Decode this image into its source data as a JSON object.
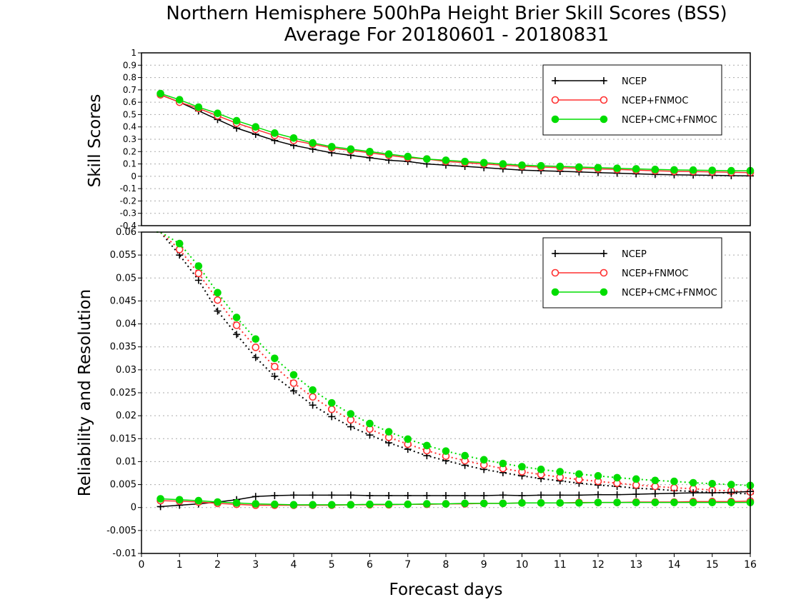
{
  "title": "Northern Hemisphere 500hPa Height Brier Skill Scores (BSS)",
  "subtitle": "Average For 20180601 - 20180831",
  "colors": {
    "NCEP": "#000000",
    "NCEP+FNMOC": "#ff3030",
    "NCEP+CMC+FNMOC": "#00dd00",
    "grid": "#aaaaaa",
    "frame": "#000000"
  },
  "chart_data": [
    {
      "type": "line",
      "ylabel": "Skill Scores",
      "xlabel": "",
      "xlim": [
        0,
        16
      ],
      "ylim": [
        -0.4,
        1
      ],
      "yticks": [
        "1",
        "0.9",
        "0.8",
        "0.7",
        "0.6",
        "0.5",
        "0.4",
        "0.3",
        "0.2",
        "0.1",
        "0",
        "-0.1",
        "-0.2",
        "-0.3",
        "-0.4"
      ],
      "grid": "horizontal dotted",
      "legend": {
        "position": "top-right",
        "entries": [
          "NCEP",
          "NCEP+FNMOC",
          "NCEP+CMC+FNMOC"
        ]
      },
      "x": [
        0.5,
        1,
        1.5,
        2,
        2.5,
        3,
        3.5,
        4,
        4.5,
        5,
        5.5,
        6,
        6.5,
        7,
        7.5,
        8,
        8.5,
        9,
        9.5,
        10,
        10.5,
        11,
        11.5,
        12,
        12.5,
        13,
        13.5,
        14,
        14.5,
        15,
        15.5,
        16
      ],
      "series": [
        {
          "name": "NCEP",
          "marker": "plus",
          "style": "solid",
          "values": [
            0.66,
            0.6,
            0.53,
            0.46,
            0.39,
            0.34,
            0.29,
            0.25,
            0.22,
            0.19,
            0.17,
            0.15,
            0.13,
            0.12,
            0.1,
            0.09,
            0.08,
            0.07,
            0.06,
            0.05,
            0.045,
            0.04,
            0.035,
            0.03,
            0.025,
            0.02,
            0.015,
            0.012,
            0.01,
            0.008,
            0.005,
            0.003
          ]
        },
        {
          "name": "NCEP+FNMOC",
          "marker": "open-circle",
          "style": "solid",
          "values": [
            0.66,
            0.6,
            0.55,
            0.49,
            0.43,
            0.38,
            0.33,
            0.29,
            0.26,
            0.23,
            0.21,
            0.19,
            0.17,
            0.15,
            0.14,
            0.12,
            0.11,
            0.1,
            0.09,
            0.08,
            0.075,
            0.07,
            0.065,
            0.06,
            0.055,
            0.05,
            0.045,
            0.04,
            0.038,
            0.035,
            0.032,
            0.03
          ]
        },
        {
          "name": "NCEP+CMC+FNMOC",
          "marker": "filled-circle",
          "style": "solid",
          "values": [
            0.67,
            0.62,
            0.56,
            0.51,
            0.45,
            0.4,
            0.35,
            0.31,
            0.27,
            0.24,
            0.22,
            0.2,
            0.18,
            0.16,
            0.14,
            0.13,
            0.12,
            0.11,
            0.1,
            0.09,
            0.085,
            0.08,
            0.075,
            0.07,
            0.065,
            0.06,
            0.055,
            0.052,
            0.05,
            0.048,
            0.045,
            0.045
          ]
        }
      ]
    },
    {
      "type": "line",
      "ylabel": "Reliability and Resolution",
      "xlabel": "Forecast days",
      "xlim": [
        0,
        16
      ],
      "ylim": [
        -0.01,
        0.06
      ],
      "xticks": [
        "0",
        "1",
        "2",
        "3",
        "4",
        "5",
        "6",
        "7",
        "8",
        "9",
        "10",
        "11",
        "12",
        "13",
        "14",
        "15",
        "16"
      ],
      "yticks": [
        "0.06",
        "0.055",
        "0.05",
        "0.045",
        "0.04",
        "0.035",
        "0.03",
        "0.025",
        "0.02",
        "0.015",
        "0.01",
        "0.005",
        "0",
        "-0.005",
        "-0.01"
      ],
      "grid": "horizontal dotted",
      "legend": {
        "position": "top-right",
        "entries": [
          "NCEP",
          "NCEP+FNMOC",
          "NCEP+CMC+FNMOC"
        ]
      },
      "x": [
        0.5,
        1,
        1.5,
        2,
        2.5,
        3,
        3.5,
        4,
        4.5,
        5,
        5.5,
        6,
        6.5,
        7,
        7.5,
        8,
        8.5,
        9,
        9.5,
        10,
        10.5,
        11,
        11.5,
        12,
        12.5,
        13,
        13.5,
        14,
        14.5,
        15,
        15.5,
        16
      ],
      "series": [
        {
          "name": "NCEP",
          "marker": "plus",
          "style": "dotted",
          "group": "resolution",
          "values": [
            0.06,
            0.055,
            0.0495,
            0.0428,
            0.0377,
            0.0327,
            0.0286,
            0.0254,
            0.0223,
            0.0198,
            0.0176,
            0.0158,
            0.0141,
            0.0127,
            0.0113,
            0.0102,
            0.0092,
            0.0083,
            0.0076,
            0.0069,
            0.0063,
            0.0058,
            0.0053,
            0.0049,
            0.0046,
            0.0042,
            0.004,
            0.0037,
            0.0035,
            0.0033,
            0.0031,
            0.003
          ]
        },
        {
          "name": "NCEP+FNMOC",
          "marker": "open-circle",
          "style": "dotted",
          "group": "resolution",
          "values": [
            0.06,
            0.0562,
            0.051,
            0.0452,
            0.0397,
            0.0349,
            0.0307,
            0.0271,
            0.0241,
            0.0214,
            0.0191,
            0.0171,
            0.0153,
            0.0138,
            0.0124,
            0.0112,
            0.0102,
            0.0093,
            0.0085,
            0.0078,
            0.0072,
            0.0066,
            0.0061,
            0.0057,
            0.0053,
            0.0049,
            0.0046,
            0.0043,
            0.0041,
            0.0038,
            0.0036,
            0.0034
          ]
        },
        {
          "name": "NCEP+CMC+FNMOC",
          "marker": "filled-circle",
          "style": "dotted",
          "group": "resolution",
          "values": [
            0.06,
            0.0575,
            0.0526,
            0.0468,
            0.0414,
            0.0367,
            0.0325,
            0.0289,
            0.0256,
            0.0228,
            0.0204,
            0.0183,
            0.0165,
            0.0149,
            0.0135,
            0.0123,
            0.0113,
            0.0104,
            0.0096,
            0.0089,
            0.0083,
            0.0078,
            0.0073,
            0.0069,
            0.0065,
            0.0062,
            0.0059,
            0.0057,
            0.0054,
            0.0052,
            0.005,
            0.0048
          ]
        },
        {
          "name": "NCEP",
          "marker": "plus",
          "style": "solid",
          "group": "reliability",
          "values": [
            0.0002,
            0.0005,
            0.0008,
            0.0012,
            0.0017,
            0.0024,
            0.0026,
            0.0027,
            0.0027,
            0.0027,
            0.0027,
            0.0026,
            0.0026,
            0.0026,
            0.0026,
            0.0026,
            0.0026,
            0.0026,
            0.0027,
            0.0026,
            0.0027,
            0.0027,
            0.0027,
            0.0028,
            0.0028,
            0.0029,
            0.003,
            0.0031,
            0.0032,
            0.0032,
            0.0033,
            0.0035
          ]
        },
        {
          "name": "NCEP+FNMOC",
          "marker": "open-circle",
          "style": "solid",
          "group": "reliability",
          "values": [
            0.0015,
            0.0014,
            0.0012,
            0.0009,
            0.0007,
            0.0005,
            0.0005,
            0.0005,
            0.0005,
            0.0005,
            0.0006,
            0.0006,
            0.0006,
            0.0007,
            0.0007,
            0.0008,
            0.0008,
            0.0009,
            0.0009,
            0.001,
            0.001,
            0.001,
            0.0011,
            0.0011,
            0.0011,
            0.0012,
            0.0012,
            0.0012,
            0.0013,
            0.0013,
            0.0013,
            0.0014
          ]
        },
        {
          "name": "NCEP+CMC+FNMOC",
          "marker": "filled-circle",
          "style": "solid",
          "group": "reliability",
          "values": [
            0.0019,
            0.0017,
            0.0015,
            0.0012,
            0.001,
            0.0008,
            0.0007,
            0.0006,
            0.0006,
            0.0006,
            0.0006,
            0.0007,
            0.0007,
            0.0007,
            0.0008,
            0.0008,
            0.0009,
            0.0009,
            0.0009,
            0.001,
            0.001,
            0.001,
            0.001,
            0.0011,
            0.0011,
            0.0011,
            0.0011,
            0.0011,
            0.0011,
            0.0011,
            0.0011,
            0.0011
          ]
        }
      ]
    }
  ]
}
